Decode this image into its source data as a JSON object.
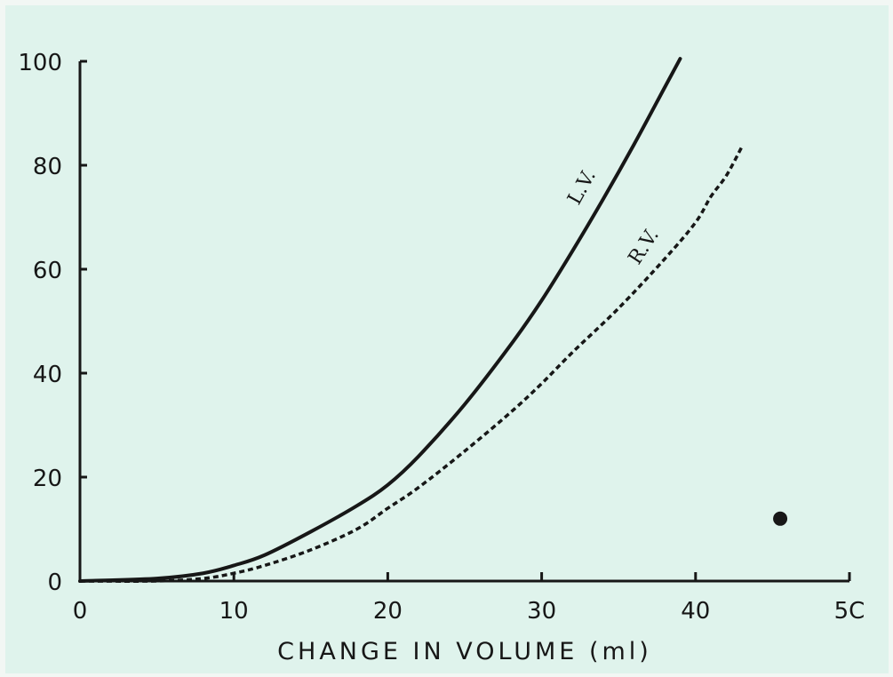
{
  "chart_data": {
    "type": "line",
    "title": "",
    "xlabel": "CHANGE IN VOLUME (ml)",
    "ylabel": "",
    "xlim": [
      0,
      50
    ],
    "ylim": [
      0,
      100
    ],
    "x_ticks": [
      "0",
      "10",
      "20",
      "30",
      "40",
      "5C"
    ],
    "y_ticks": [
      "0",
      "20",
      "40",
      "60",
      "80",
      "100"
    ],
    "grid": false,
    "series": [
      {
        "name": "L.V.",
        "style": "solid",
        "x": [
          0,
          5,
          8,
          10,
          12,
          15,
          18,
          20,
          22,
          25,
          28,
          30,
          32,
          34,
          36,
          38,
          39
        ],
        "y": [
          0,
          0.5,
          1.5,
          3,
          5,
          9.5,
          14.5,
          18.5,
          24,
          34,
          45.5,
          54,
          63.5,
          73.5,
          84,
          95,
          100.5
        ]
      },
      {
        "name": "R.V.",
        "style": "dashed",
        "x": [
          0,
          5,
          8,
          10,
          12,
          15,
          18,
          20,
          22,
          25,
          28,
          30,
          32,
          35,
          38,
          40,
          41,
          42,
          43
        ],
        "y": [
          0,
          0,
          0.5,
          1.5,
          3,
          6,
          10,
          14,
          18,
          25,
          32.5,
          38,
          44,
          52.5,
          62,
          69,
          74,
          78,
          83.5
        ]
      }
    ],
    "markers": [
      {
        "x": 45.5,
        "y": 12,
        "shape": "dot"
      }
    ],
    "colors": {
      "ink": "#171717",
      "background": "#dff3ec"
    }
  }
}
